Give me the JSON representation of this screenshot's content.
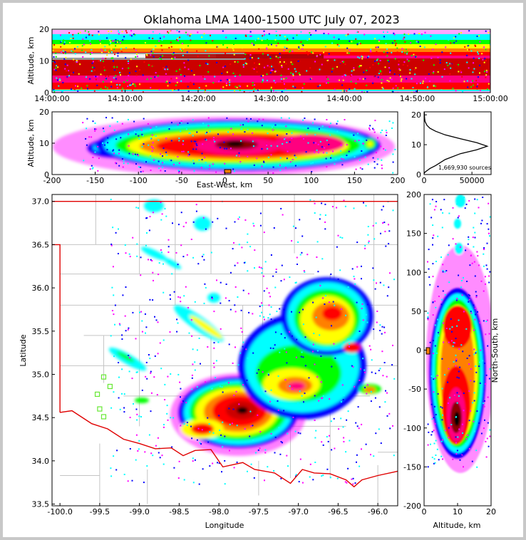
{
  "title": "Oklahoma LMA 1400-1500 UTC July 07, 2023",
  "colors": {
    "border": "#e00000",
    "counties": "#c4c4c4",
    "stations": "#66e833",
    "frame": "#000000"
  },
  "chart_data": [
    {
      "id": "time-height",
      "type": "heatmap",
      "xlabel": "",
      "ylabel": "Altitude, km",
      "xticks": [
        "14:00:00",
        "14:10:00",
        "14:20:00",
        "14:30:00",
        "14:40:00",
        "14:50:00",
        "15:00:00"
      ],
      "xlim": [
        0,
        60
      ],
      "ylim": [
        0,
        20
      ],
      "yticks": [
        0,
        10,
        20
      ]
    },
    {
      "id": "ew-height",
      "type": "heatmap",
      "xlabel": "East-West, km",
      "ylabel": "Altitude, km",
      "xlim": [
        -200,
        200
      ],
      "xticks": [
        -200,
        -150,
        -100,
        -50,
        0,
        50,
        100,
        150,
        200
      ],
      "ylim": [
        0,
        20
      ],
      "yticks": [
        0,
        10,
        20
      ]
    },
    {
      "id": "altitude-histogram",
      "type": "line",
      "xlabel": "",
      "ylabel": "",
      "xlim": [
        0,
        70000
      ],
      "xticks": [
        0,
        50000
      ],
      "ylim": [
        0,
        21
      ],
      "yticks": [
        0,
        10,
        20
      ],
      "annotation": "1,669,930 sources",
      "x": [
        0,
        1000,
        3000,
        6000,
        12000,
        22000,
        38000,
        55000,
        66000,
        55000,
        38000,
        22000,
        12000,
        6000,
        3000,
        1000,
        500,
        200
      ],
      "y": [
        0.3,
        0.8,
        1.3,
        2.0,
        3.0,
        5.0,
        7.0,
        8.3,
        9.5,
        10.7,
        12.0,
        13.3,
        14.5,
        15.5,
        16.5,
        17.8,
        19.0,
        21
      ]
    },
    {
      "id": "plan-view",
      "type": "heatmap",
      "xlabel": "Longitude",
      "ylabel": "Latitude",
      "xlim": [
        -100.1,
        -95.75
      ],
      "ylim": [
        33.48,
        37.08
      ],
      "xticks": [
        -100.0,
        -99.5,
        -99.0,
        -98.5,
        -98.0,
        -97.5,
        -97.0,
        -96.5,
        -96.0
      ],
      "yticks": [
        33.5,
        34.0,
        34.5,
        35.0,
        35.5,
        36.0,
        36.5,
        37.0
      ],
      "stations": [
        {
          "lon": -99.45,
          "lat": 34.97
        },
        {
          "lon": -99.37,
          "lat": 34.86
        },
        {
          "lon": -99.53,
          "lat": 34.77
        },
        {
          "lon": -99.5,
          "lat": 34.6
        },
        {
          "lon": -99.45,
          "lat": 34.51
        }
      ]
    },
    {
      "id": "ns-height",
      "type": "heatmap",
      "xlabel": "Altitude, km",
      "ylabel": "North-South, km",
      "xlim": [
        0,
        20
      ],
      "xticks": [
        0,
        10,
        20
      ],
      "ylim": [
        -200,
        200
      ],
      "yticks": [
        -200,
        -150,
        -100,
        -50,
        0,
        50,
        100,
        150,
        200
      ]
    }
  ]
}
